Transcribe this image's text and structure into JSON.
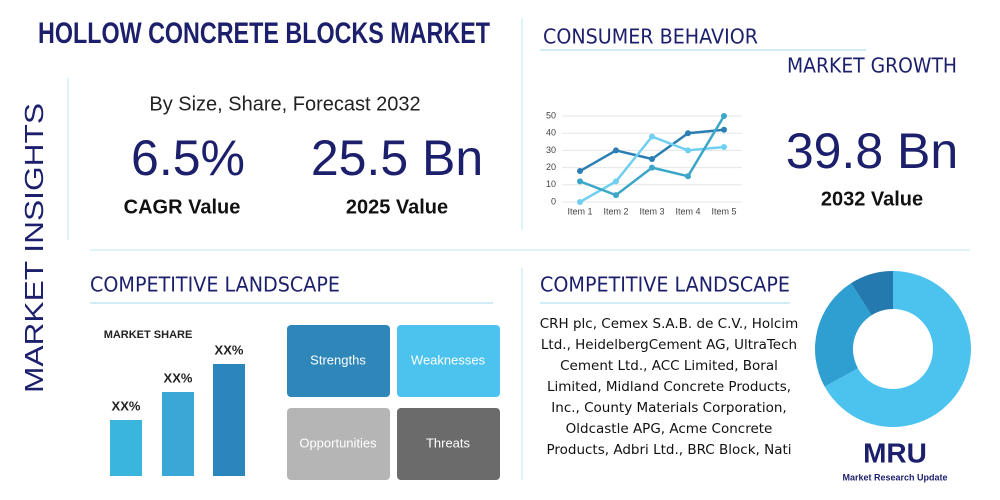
{
  "title": "HOLLOW CONCRETE BLOCKS MARKET",
  "side_label": "MARKET INSIGHTS",
  "subtitle": "By Size, Share, Forecast 2032",
  "stats": [
    {
      "value": "6.5%",
      "label": "CAGR Value"
    },
    {
      "value": "25.5 Bn",
      "label": "2025 Value"
    },
    {
      "value": "39.8 Bn",
      "label": "2032 Value"
    }
  ],
  "consumer_heading": "CONSUMER BEHAVIOR",
  "growth_heading": "MARKET GROWTH",
  "landscape_heading_left": "COMPETITIVE LANDSCAPE",
  "landscape_heading_right": "COMPETITIVE LANDSCAPE",
  "swot": [
    "Strengths",
    "Weaknesses",
    "Opportunities",
    "Threats"
  ],
  "companies": "CRH plc, Cemex S.A.B. de C.V., Holcim Ltd., HeidelbergCement AG, UltraTech Cement Ltd., ACC Limited, Boral Limited, Midland Concrete Products, Inc., County Materials Corporation, Oldcastle APG, Acme Concrete Products, Adbri Ltd., BRC Block, Nati",
  "logo": {
    "mark": "MRU",
    "name": "Market Research Update"
  },
  "chart_data": [
    {
      "type": "line",
      "categories": [
        "Item 1",
        "Item 2",
        "Item 3",
        "Item 4",
        "Item 5"
      ],
      "ylim": [
        0,
        50
      ],
      "yticks": [
        0,
        10,
        20,
        30,
        40,
        50
      ],
      "grid": true,
      "series": [
        {
          "color": "#2b7fb3",
          "values": [
            18,
            30,
            25,
            40,
            42
          ]
        },
        {
          "color": "#6fd0f2",
          "values": [
            0,
            12,
            38,
            30,
            32
          ]
        },
        {
          "color": "#3aa6c8",
          "values": [
            12,
            4,
            20,
            15,
            50
          ]
        }
      ]
    },
    {
      "type": "bar",
      "title": "MARKET SHARE",
      "values": [
        2,
        3,
        4
      ],
      "value_labels": [
        "XX%",
        "XX%",
        "XX%"
      ],
      "colors": [
        "#3ab6dc",
        "#39a8d6",
        "#2b86bd"
      ]
    },
    {
      "type": "pie",
      "values": [
        67,
        24,
        9
      ],
      "colors": [
        "#4cc3ef",
        "#2e9fd0",
        "#2479ae"
      ]
    }
  ]
}
